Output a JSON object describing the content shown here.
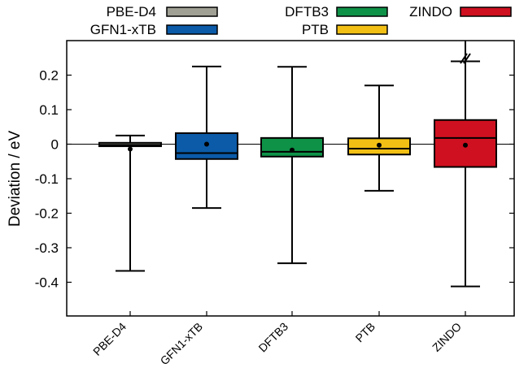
{
  "chart_data": {
    "type": "box",
    "ylabel": "Deviation / eV",
    "xlabel": "",
    "ylim": [
      -0.5,
      0.29
    ],
    "yticks": [
      0.2,
      0.1,
      0,
      -0.1,
      -0.2,
      -0.3,
      -0.4
    ],
    "ytick_labels": [
      "0.2",
      "0.1",
      "0",
      "-0.1",
      "-0.2",
      "-0.3",
      "-0.4"
    ],
    "zero_line": true,
    "grid": false,
    "legend_position": "top",
    "categories": [
      "PBE-D4",
      "GFN1-xTB",
      "DFTB3",
      "PTB",
      "ZINDO"
    ],
    "series": [
      {
        "name": "PBE-D4",
        "color": "#a0a094",
        "whisker_low": -0.367,
        "q1": -0.006,
        "median": -0.002,
        "q3": 0.004,
        "whisker_high": 0.025,
        "mean": -0.014
      },
      {
        "name": "GFN1-xTB",
        "color": "#0b5ba8",
        "whisker_low": -0.185,
        "q1": -0.043,
        "median": -0.026,
        "q3": 0.032,
        "whisker_high": 0.225,
        "mean": 0.0
      },
      {
        "name": "DFTB3",
        "color": "#0e9248",
        "whisker_low": -0.345,
        "q1": -0.036,
        "median": -0.022,
        "q3": 0.018,
        "whisker_high": 0.224,
        "mean": -0.017
      },
      {
        "name": "PTB",
        "color": "#f2c015",
        "whisker_low": -0.135,
        "q1": -0.03,
        "median": -0.013,
        "q3": 0.017,
        "whisker_high": 0.17,
        "mean": -0.003
      },
      {
        "name": "ZINDO",
        "color": "#cf1020",
        "whisker_low": -0.412,
        "q1": -0.066,
        "median": 0.018,
        "q3": 0.07,
        "whisker_high": 0.29,
        "whisker_high_broken": true,
        "mean": -0.003
      }
    ]
  }
}
